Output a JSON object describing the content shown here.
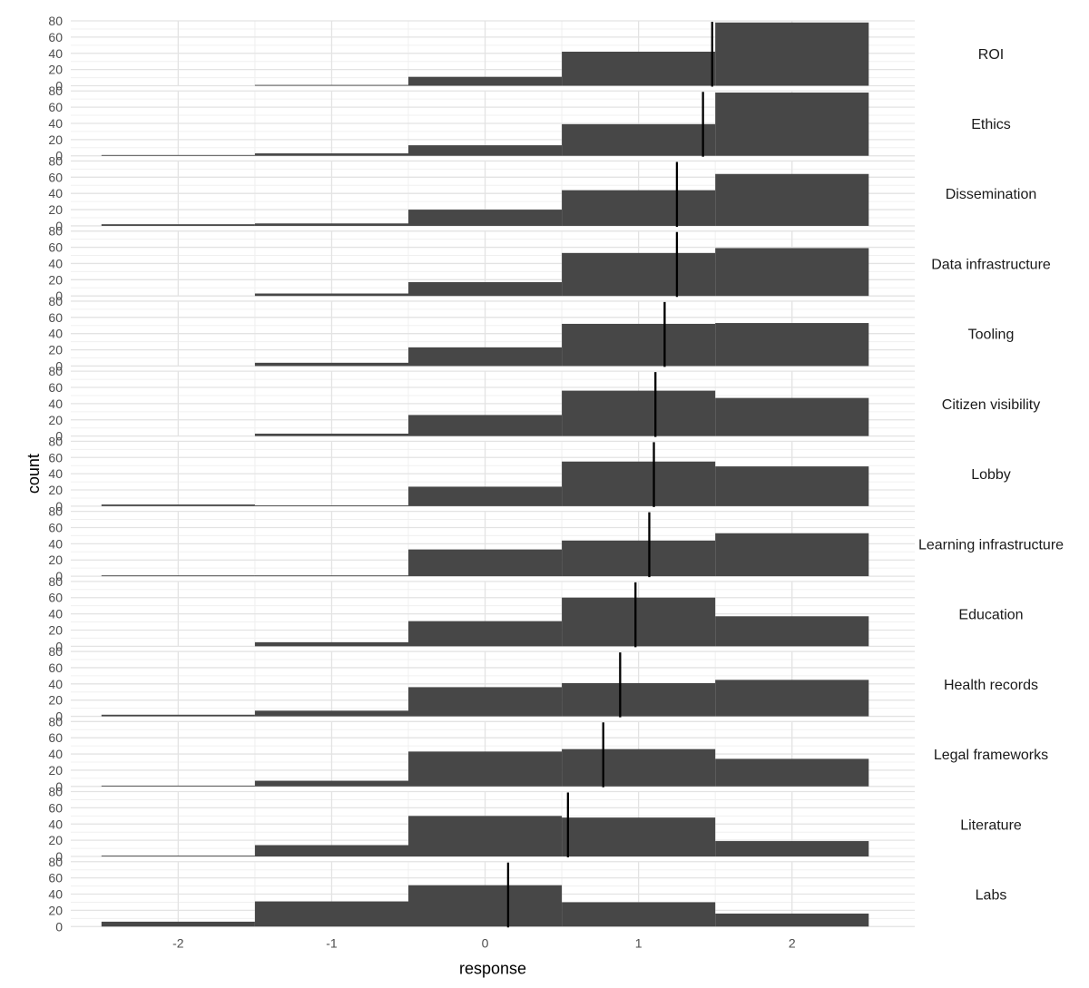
{
  "chart_data": {
    "type": "bar",
    "subtype": "faceted-histogram",
    "xlabel": "response",
    "ylabel": "count",
    "xlim": [
      -2.7,
      2.8
    ],
    "ylim": [
      0,
      80
    ],
    "x_ticks": [
      -2,
      -1,
      0,
      1,
      2
    ],
    "x_tick_labels": [
      "-2",
      "-1",
      "0",
      "1",
      "2"
    ],
    "y_ticks": [
      0,
      20,
      40,
      60,
      80
    ],
    "y_tick_labels": [
      "0",
      "20",
      "40",
      "60",
      "80"
    ],
    "bin_edges": [
      -2.5,
      -1.5,
      -0.5,
      0.5,
      1.5,
      2.5
    ],
    "bin_centers": [
      -2,
      -1,
      0,
      1,
      2
    ],
    "grid": true,
    "bar_color": "#474747",
    "mean_line_color": "#000000",
    "facets": [
      {
        "name": "ROI",
        "counts": [
          0,
          1,
          11,
          42,
          78
        ],
        "mean": 1.48
      },
      {
        "name": "Ethics",
        "counts": [
          1,
          3,
          13,
          39,
          78
        ],
        "mean": 1.42
      },
      {
        "name": "Dissemination",
        "counts": [
          2,
          3,
          20,
          44,
          64
        ],
        "mean": 1.25
      },
      {
        "name": "Data infrastructure",
        "counts": [
          0,
          3,
          17,
          53,
          59
        ],
        "mean": 1.25
      },
      {
        "name": "Tooling",
        "counts": [
          0,
          4,
          23,
          52,
          53
        ],
        "mean": 1.17
      },
      {
        "name": "Citizen visibility",
        "counts": [
          0,
          3,
          26,
          56,
          47
        ],
        "mean": 1.11
      },
      {
        "name": "Lobby",
        "counts": [
          2,
          1,
          24,
          55,
          49
        ],
        "mean": 1.1
      },
      {
        "name": "Learning infrastructure",
        "counts": [
          1,
          1,
          33,
          44,
          53
        ],
        "mean": 1.07
      },
      {
        "name": "Education",
        "counts": [
          0,
          5,
          31,
          60,
          37
        ],
        "mean": 0.98
      },
      {
        "name": "Health records",
        "counts": [
          2,
          7,
          36,
          41,
          45
        ],
        "mean": 0.88
      },
      {
        "name": "Legal frameworks",
        "counts": [
          1,
          7,
          43,
          46,
          34
        ],
        "mean": 0.77
      },
      {
        "name": "Literature",
        "counts": [
          1,
          14,
          50,
          48,
          19
        ],
        "mean": 0.54
      },
      {
        "name": "Labs",
        "counts": [
          6,
          31,
          51,
          30,
          16
        ],
        "mean": 0.15
      }
    ]
  }
}
